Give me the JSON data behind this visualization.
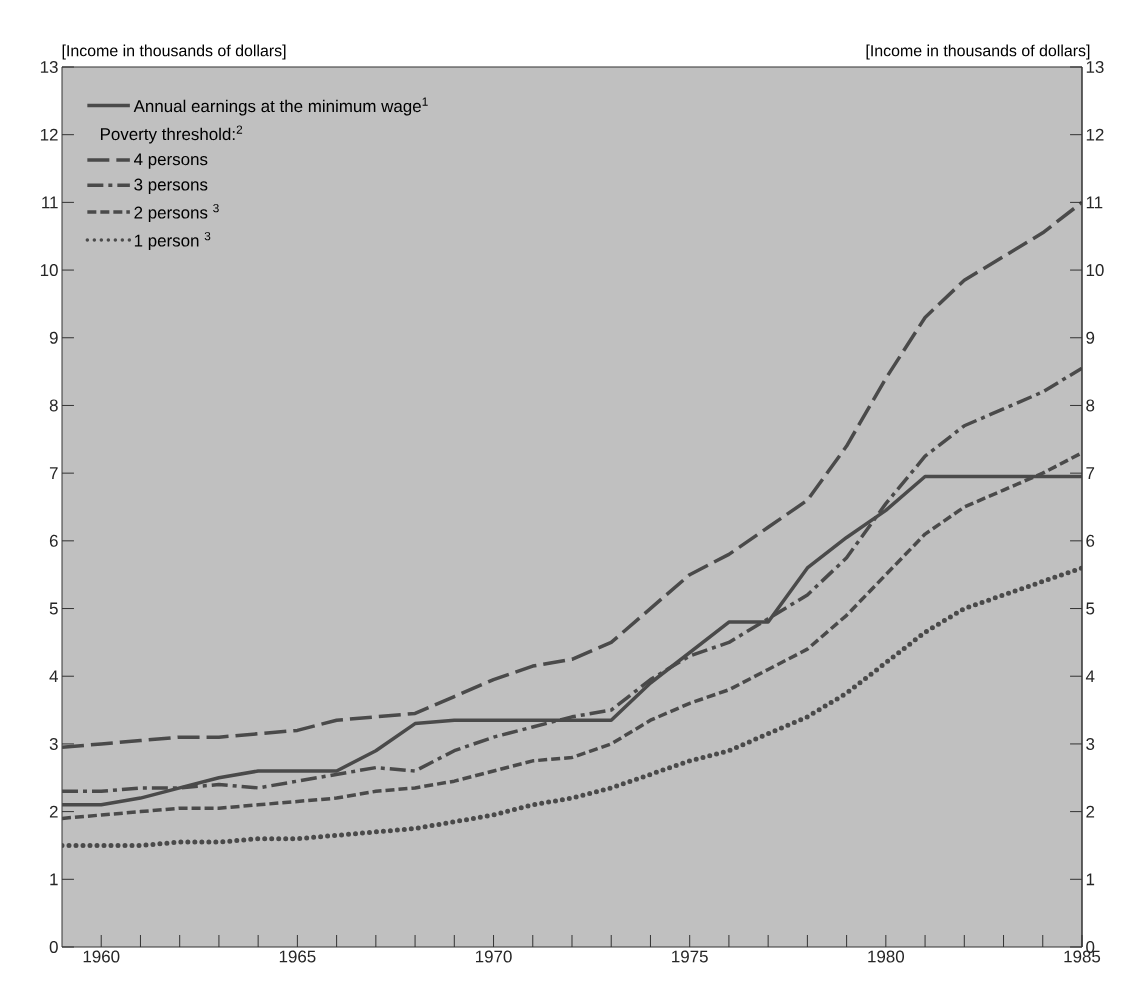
{
  "chart_data": {
    "type": "line",
    "ylabel": "[Income in thousands of dollars]",
    "y2label": "[Income in thousands of dollars]",
    "legend_title": "Poverty threshold:$^{2}$",
    "legend": "top left",
    "marker": "none",
    "x": [
      1959,
      1960,
      1961,
      1962,
      1963,
      1964,
      1965,
      1966,
      1967,
      1968,
      1969,
      1970,
      1971,
      1972,
      1973,
      1974,
      1975,
      1976,
      1977,
      1978,
      1979,
      1980,
      1981,
      1982,
      1983,
      1984,
      1985
    ],
    "xlim": [
      1959,
      1985
    ],
    "xticks": [
      1960,
      {
        "value": 1961,
        "label": null
      },
      {
        "value": 1962,
        "label": null
      },
      {
        "value": 1963,
        "label": null
      },
      {
        "value": 1964,
        "label": null
      },
      1965,
      {
        "value": 1966,
        "label": null
      },
      {
        "value": 1967,
        "label": null
      },
      {
        "value": 1968,
        "label": null
      },
      {
        "value": 1969,
        "label": null
      },
      1970,
      {
        "value": 1971,
        "label": null
      },
      {
        "value": 1972,
        "label": null
      },
      {
        "value": 1973,
        "label": null
      },
      {
        "value": 1974,
        "label": null
      },
      1975,
      {
        "value": 1976,
        "label": null
      },
      {
        "value": 1977,
        "label": null
      },
      {
        "value": 1978,
        "label": null
      },
      {
        "value": 1979,
        "label": null
      },
      1980,
      {
        "value": 1981,
        "label": null
      },
      {
        "value": 1982,
        "label": null
      },
      {
        "value": 1983,
        "label": null
      },
      {
        "value": 1984,
        "label": null
      },
      1985
    ],
    "ylim": [
      0,
      13
    ],
    "yticks": [
      0,
      1,
      2,
      3,
      4,
      5,
      6,
      7,
      8,
      9,
      10,
      11,
      12,
      13
    ],
    "y2lim": [
      0,
      13
    ],
    "y2ticks": [
      0,
      1,
      2,
      3,
      4,
      5,
      6,
      7,
      8,
      9,
      10,
      11,
      12,
      13
    ],
    "series": [
      {
        "name": "Annual earnings at the minimum wage$^{1}$",
        "color": "#4a4a4a",
        "line_style": "solid",
        "values": [
          2.1,
          2.1,
          2.2,
          2.35,
          2.5,
          2.6,
          2.6,
          2.6,
          2.9,
          3.3,
          3.35,
          3.35,
          3.35,
          3.35,
          3.35,
          3.9,
          4.35,
          4.8,
          4.8,
          5.6,
          6.05,
          6.45,
          6.95,
          6.95,
          6.95,
          6.95,
          6.95
        ]
      },
      {
        "name": "4 persons",
        "color": "#4a4a4a",
        "line_style": "longdashed",
        "values": [
          2.95,
          3.0,
          3.05,
          3.1,
          3.1,
          3.15,
          3.2,
          3.35,
          3.4,
          3.45,
          3.7,
          3.95,
          4.15,
          4.25,
          4.5,
          5.0,
          5.5,
          5.8,
          6.2,
          6.6,
          7.4,
          8.4,
          9.3,
          9.85,
          10.2,
          10.55,
          11.0
        ]
      },
      {
        "name": "3 persons",
        "color": "#4a4a4a",
        "line_style": "dashdot",
        "values": [
          2.3,
          2.3,
          2.35,
          2.35,
          2.4,
          2.35,
          2.45,
          2.55,
          2.65,
          2.6,
          2.9,
          3.1,
          3.25,
          3.4,
          3.5,
          3.95,
          4.3,
          4.5,
          4.85,
          5.2,
          5.75,
          6.55,
          7.25,
          7.7,
          7.95,
          8.2,
          8.55
        ]
      },
      {
        "name": "2 persons $^{3}$",
        "color": "#4a4a4a",
        "line_style": "dashed",
        "values": [
          1.9,
          1.95,
          2.0,
          2.05,
          2.05,
          2.1,
          2.15,
          2.2,
          2.3,
          2.35,
          2.45,
          2.6,
          2.75,
          2.8,
          3.0,
          3.35,
          3.6,
          3.8,
          4.1,
          4.4,
          4.9,
          5.5,
          6.1,
          6.5,
          6.75,
          7.0,
          7.3
        ]
      },
      {
        "name": "1 person $^{3}$",
        "color": "#4a4a4a",
        "line_style": "dotted",
        "values": [
          1.5,
          1.5,
          1.5,
          1.55,
          1.55,
          1.6,
          1.6,
          1.65,
          1.7,
          1.75,
          1.85,
          1.95,
          2.1,
          2.2,
          2.35,
          2.55,
          2.75,
          2.9,
          3.15,
          3.4,
          3.75,
          4.2,
          4.65,
          5.0,
          5.2,
          5.4,
          5.6
        ]
      }
    ]
  }
}
